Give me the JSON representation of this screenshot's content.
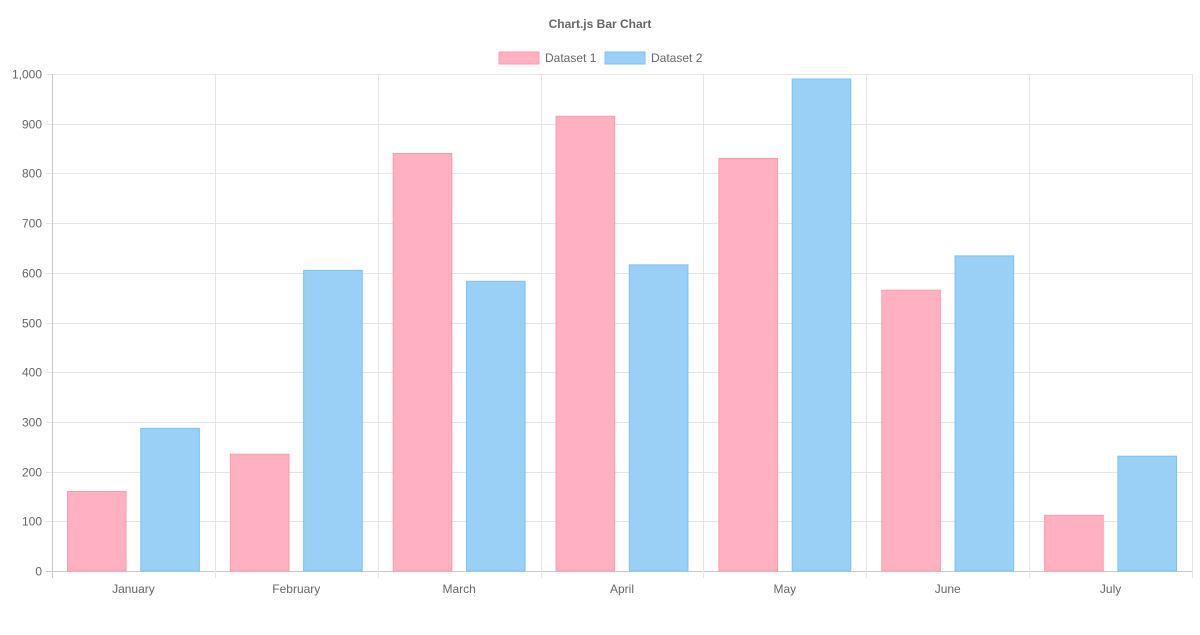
{
  "chart_data": {
    "type": "bar",
    "title": "Chart.js Bar Chart",
    "categories": [
      "January",
      "February",
      "March",
      "April",
      "May",
      "June",
      "July"
    ],
    "series": [
      {
        "name": "Dataset 1",
        "values": [
          160,
          235,
          840,
          915,
          830,
          565,
          112
        ],
        "color": "#ffb1c1",
        "border": "#ff9aaf"
      },
      {
        "name": "Dataset 2",
        "values": [
          287,
          605,
          583,
          616,
          990,
          634,
          231
        ],
        "color": "#9ad0f5",
        "border": "#7cc3f2"
      }
    ],
    "ylim": [
      0,
      1000
    ],
    "yticks": [
      "0",
      "100",
      "200",
      "300",
      "400",
      "500",
      "600",
      "700",
      "800",
      "900",
      "1,000"
    ],
    "grid": true,
    "legend_position": "top"
  }
}
